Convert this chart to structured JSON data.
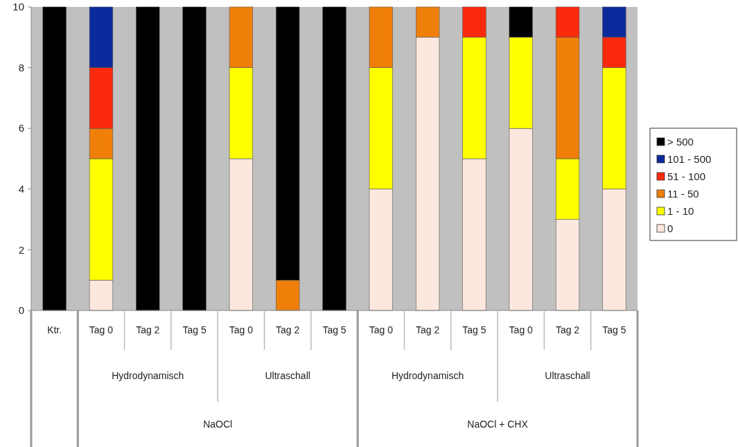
{
  "chart_data": {
    "type": "bar",
    "stacked": true,
    "categories": [
      "Ktr.",
      "Tag 0",
      "Tag 2",
      "Tag 5",
      "Tag 0",
      "Tag 2",
      "Tag 5",
      "Tag 0",
      "Tag 2",
      "Tag 5",
      "Tag 0",
      "Tag 2",
      "Tag 5"
    ],
    "series": [
      {
        "name": "0",
        "color": "#fce8de",
        "values": [
          null,
          1,
          null,
          null,
          5,
          null,
          null,
          4,
          9,
          5,
          6,
          3,
          4
        ]
      },
      {
        "name": "1 - 10",
        "color": "#ffff00",
        "values": [
          null,
          4,
          null,
          null,
          3,
          null,
          null,
          4,
          null,
          4,
          3,
          2,
          4
        ]
      },
      {
        "name": "11 - 50",
        "color": "#f07f0a",
        "values": [
          null,
          1,
          null,
          null,
          2,
          1,
          null,
          2,
          1,
          null,
          null,
          4,
          null
        ]
      },
      {
        "name": "51 - 100",
        "color": "#fb2a0c",
        "values": [
          null,
          2,
          null,
          null,
          null,
          null,
          null,
          null,
          null,
          1,
          null,
          1,
          1
        ]
      },
      {
        "name": "101 - 500",
        "color": "#0b2a9c",
        "values": [
          null,
          2,
          null,
          null,
          null,
          null,
          null,
          null,
          null,
          null,
          null,
          null,
          1
        ]
      },
      {
        "name": "> 500",
        "color": "#000000",
        "values": [
          10,
          null,
          10,
          10,
          null,
          9,
          10,
          null,
          null,
          null,
          1,
          null,
          null
        ]
      }
    ],
    "annotations": [
      "Hydrodynamisch",
      "Ultraschall",
      "Hydrodynamisch",
      "Ultraschall",
      "NaOCl",
      "NaOCl + CHX"
    ],
    "ylim": [
      0,
      10
    ],
    "yticks": [
      0,
      2,
      4,
      6,
      8,
      10
    ],
    "grid": false,
    "legend": "right"
  }
}
